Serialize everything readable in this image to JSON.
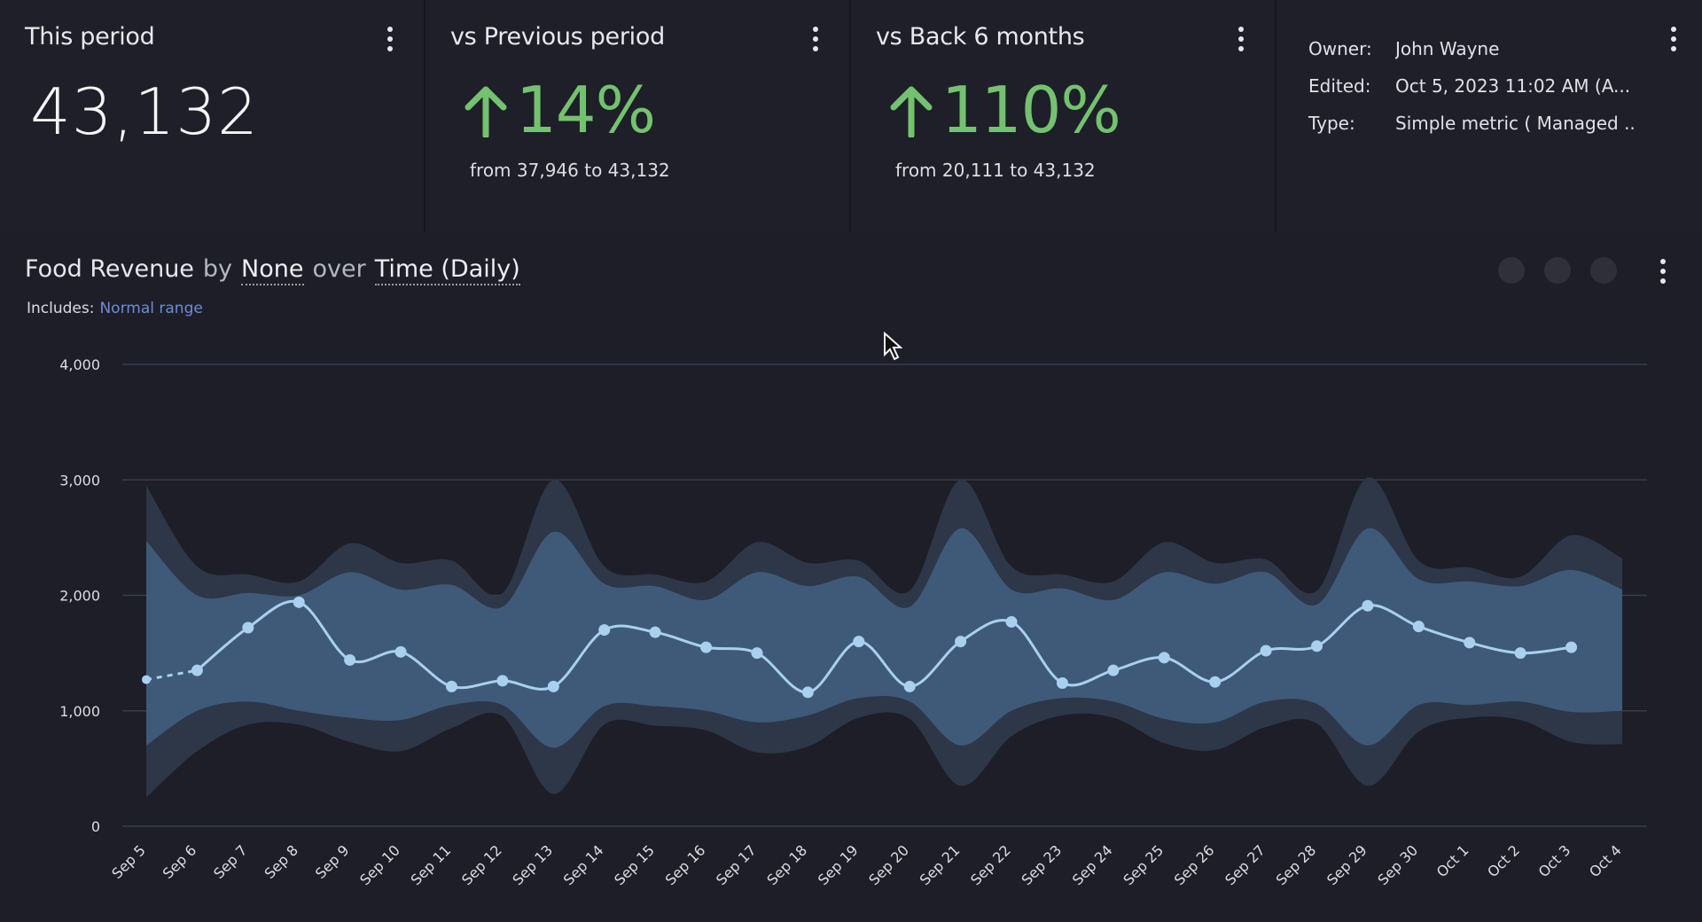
{
  "cards": {
    "this_period": {
      "title": "This period",
      "value": "43,132"
    },
    "previous": {
      "title": "vs Previous period",
      "delta": "14%",
      "sub": "from 37,946 to 43,132"
    },
    "back6": {
      "title": "vs Back 6 months",
      "delta": "110%",
      "sub": "from 20,111 to 43,132"
    },
    "meta": {
      "owner_label": "Owner:",
      "owner": "John Wayne",
      "edited_label": "Edited:",
      "edited": "Oct 5, 2023 11:02 AM (A...",
      "type_label": "Type:",
      "type": "Simple metric ( Managed ..."
    }
  },
  "chart_panel": {
    "title_metric": "Food Revenue",
    "title_by": "by",
    "title_group": "None",
    "title_over": "over",
    "title_time": "Time (Daily)",
    "includes_label": "Includes:",
    "includes_link": "Normal range"
  },
  "colors": {
    "positive": "#74c26f",
    "line": "#a9d0ee",
    "band_inner": "#3e5a78",
    "band_outer": "#2d3748",
    "link": "#6d8ed3"
  },
  "chart_data": {
    "type": "line",
    "categories": [
      "Sep 5",
      "Sep 6",
      "Sep 7",
      "Sep 8",
      "Sep 9",
      "Sep 10",
      "Sep 11",
      "Sep 12",
      "Sep 13",
      "Sep 14",
      "Sep 15",
      "Sep 16",
      "Sep 17",
      "Sep 18",
      "Sep 19",
      "Sep 20",
      "Sep 21",
      "Sep 22",
      "Sep 23",
      "Sep 24",
      "Sep 25",
      "Sep 26",
      "Sep 27",
      "Sep 28",
      "Sep 29",
      "Sep 30",
      "Oct 1",
      "Oct 2",
      "Oct 3",
      "Oct 4"
    ],
    "series": [
      {
        "values": [
          1270,
          1350,
          1720,
          1940,
          1440,
          1510,
          1210,
          1260,
          1210,
          1700,
          1680,
          1550,
          1500,
          1160,
          1600,
          1210,
          1600,
          1770,
          1240,
          1350,
          1460,
          1250,
          1520,
          1560,
          1910,
          1730,
          1590,
          1500,
          1550,
          null
        ]
      }
    ],
    "normal_range_outer": {
      "upper": [
        2950,
        2250,
        2180,
        2120,
        2450,
        2280,
        2300,
        2020,
        3000,
        2250,
        2180,
        2120,
        2460,
        2280,
        2300,
        2040,
        3000,
        2250,
        2180,
        2120,
        2460,
        2280,
        2310,
        2040,
        3020,
        2300,
        2240,
        2160,
        2520,
        2320
      ],
      "lower": [
        250,
        650,
        880,
        880,
        730,
        650,
        850,
        950,
        280,
        880,
        870,
        830,
        640,
        690,
        940,
        930,
        350,
        780,
        960,
        940,
        720,
        660,
        860,
        890,
        350,
        820,
        940,
        920,
        730,
        710
      ]
    },
    "normal_range_inner": {
      "upper": [
        2470,
        2000,
        2020,
        2000,
        2200,
        2050,
        2090,
        1900,
        2550,
        2100,
        2080,
        1960,
        2200,
        2080,
        2160,
        1900,
        2580,
        2050,
        2060,
        1960,
        2200,
        2100,
        2200,
        1920,
        2580,
        2140,
        2120,
        2080,
        2220,
        2050
      ],
      "lower": [
        700,
        1000,
        1080,
        1000,
        940,
        920,
        1050,
        1050,
        680,
        1040,
        1040,
        1000,
        900,
        960,
        1110,
        1080,
        700,
        1000,
        1110,
        1080,
        930,
        900,
        1080,
        1060,
        700,
        1050,
        1050,
        1080,
        990,
        1000
      ]
    },
    "ylim": [
      0,
      4000
    ],
    "yticks": [
      "0",
      "1,000",
      "2,000",
      "3,000",
      "4,000"
    ],
    "ytick_values": [
      0,
      1000,
      2000,
      3000,
      4000
    ],
    "grid": true,
    "xlabel": "",
    "ylabel": ""
  }
}
